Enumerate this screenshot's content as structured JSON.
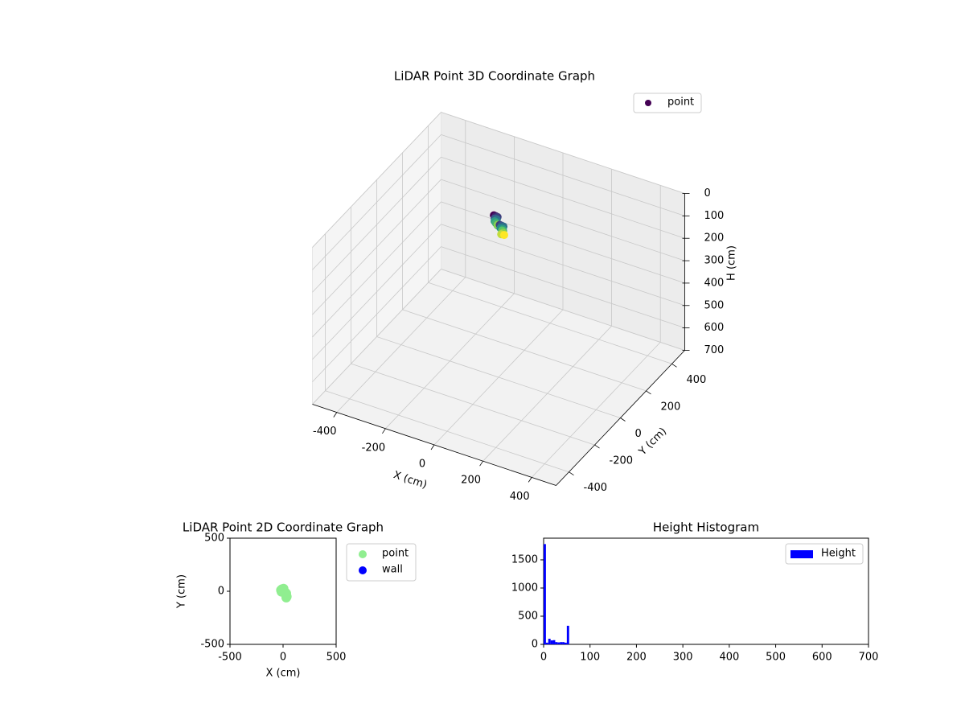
{
  "chart_data": [
    {
      "type": "scatter3d",
      "title": "LiDAR Point 3D Coordinate Graph",
      "xlabel": "X (cm)",
      "ylabel": "Y (cm)",
      "zlabel": "H (cm)",
      "xlim": [
        -500,
        500
      ],
      "ylim": [
        -500,
        500
      ],
      "zlim": [
        0,
        700
      ],
      "z_inverted": true,
      "xticks": [
        -400,
        -200,
        0,
        200,
        400
      ],
      "yticks": [
        -400,
        -200,
        0,
        200,
        400
      ],
      "zticks": [
        0,
        100,
        200,
        300,
        400,
        500,
        600,
        700
      ],
      "colormap": "viridis",
      "legend": "upper right",
      "series": [
        {
          "name": "point",
          "color": "#440154",
          "x": [
            -30,
            -25,
            -20,
            -28,
            -22,
            -18,
            -30,
            -24,
            -15,
            -20,
            10,
            15,
            20,
            12,
            18,
            22,
            14,
            20,
            16,
            24
          ],
          "y": [
            20,
            25,
            30,
            22,
            28,
            18,
            26,
            24,
            20,
            30,
            -10,
            -5,
            0,
            -8,
            -2,
            -6,
            0,
            -4,
            -10,
            -2
          ],
          "z": [
            0,
            5,
            10,
            15,
            20,
            25,
            30,
            35,
            40,
            45,
            10,
            15,
            20,
            25,
            30,
            35,
            40,
            45,
            50,
            55
          ]
        }
      ]
    },
    {
      "type": "scatter",
      "title": "LiDAR Point 2D Coordinate Graph",
      "xlabel": "X (cm)",
      "ylabel": "Y (cm)",
      "xlim": [
        -500,
        500
      ],
      "ylim": [
        -500,
        500
      ],
      "xticks": [
        -500,
        0,
        500
      ],
      "yticks": [
        -500,
        0,
        500
      ],
      "legend": "outside right",
      "series": [
        {
          "name": "point",
          "color": "#90ee90",
          "x": [
            -20,
            -10,
            0,
            10,
            20,
            30,
            35,
            -15,
            5,
            25,
            30
          ],
          "y": [
            10,
            20,
            15,
            0,
            -10,
            -20,
            -50,
            -5,
            25,
            -30,
            -60
          ]
        },
        {
          "name": "wall",
          "color": "#0000ff",
          "x": [],
          "y": []
        }
      ]
    },
    {
      "type": "histogram",
      "title": "Height Histogram",
      "bins": [
        0,
        5,
        10,
        15,
        20,
        25,
        30,
        35,
        40,
        45,
        50,
        55
      ],
      "series": [
        {
          "name": "Height",
          "color": "#0000ff",
          "values": [
            1780,
            30,
            100,
            70,
            75,
            40,
            35,
            40,
            40,
            30,
            330
          ]
        }
      ],
      "xlim": [
        0,
        700
      ],
      "ylim": [
        0,
        1885
      ],
      "xticks": [
        0,
        100,
        200,
        300,
        400,
        500,
        600,
        700
      ],
      "yticks": [
        0,
        500,
        1000,
        1500
      ],
      "legend": "upper right"
    }
  ]
}
